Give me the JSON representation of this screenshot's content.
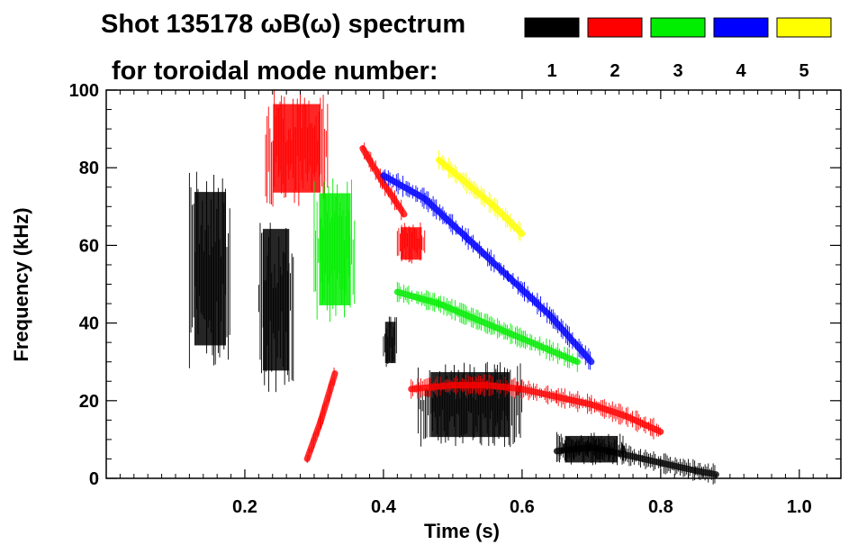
{
  "chart_data": {
    "type": "spectrogram",
    "title_line1": "Shot 135178 ωB(ω) spectrum",
    "title_line2": "for toroidal mode number:",
    "xlabel": "Time (s)",
    "ylabel": "Frequency (kHz)",
    "xlim": [
      0.0,
      1.06
    ],
    "ylim": [
      0,
      100
    ],
    "xticks": [
      {
        "value": 0.2,
        "label": "0.2"
      },
      {
        "value": 0.4,
        "label": "0.4"
      },
      {
        "value": 0.6,
        "label": "0.6"
      },
      {
        "value": 0.8,
        "label": "0.8"
      },
      {
        "value": 1.0,
        "label": "1.0"
      }
    ],
    "yticks": [
      {
        "value": 0,
        "label": "0"
      },
      {
        "value": 20,
        "label": "20"
      },
      {
        "value": 40,
        "label": "40"
      },
      {
        "value": 60,
        "label": "60"
      },
      {
        "value": 80,
        "label": "80"
      },
      {
        "value": 100,
        "label": "100"
      }
    ],
    "legend": [
      {
        "mode": "1",
        "color": "#000000"
      },
      {
        "mode": "2",
        "color": "#ff0000"
      },
      {
        "mode": "3",
        "color": "#00ee00"
      },
      {
        "mode": "4",
        "color": "#0000ff"
      },
      {
        "mode": "5",
        "color": "#ffff00"
      }
    ],
    "mode_features": [
      {
        "mode": "1",
        "kind": "band",
        "t_start": 0.12,
        "t_end": 0.18,
        "f_low": 28,
        "f_high": 80
      },
      {
        "mode": "1",
        "kind": "band",
        "t_start": 0.22,
        "t_end": 0.27,
        "f_low": 22,
        "f_high": 70
      },
      {
        "mode": "1",
        "kind": "band",
        "t_start": 0.4,
        "t_end": 0.42,
        "f_low": 28,
        "f_high": 42
      },
      {
        "mode": "1",
        "kind": "band",
        "t_start": 0.45,
        "t_end": 0.6,
        "f_low": 8,
        "f_high": 30
      },
      {
        "mode": "1",
        "kind": "band",
        "t_start": 0.65,
        "t_end": 0.75,
        "f_low": 3,
        "f_high": 12
      },
      {
        "mode": "1",
        "kind": "trace",
        "points": [
          [
            0.65,
            7
          ],
          [
            0.7,
            8
          ],
          [
            0.75,
            6
          ],
          [
            0.8,
            4
          ],
          [
            0.85,
            2
          ],
          [
            0.88,
            1
          ]
        ]
      },
      {
        "mode": "2",
        "kind": "band",
        "t_start": 0.23,
        "t_end": 0.32,
        "f_low": 70,
        "f_high": 100
      },
      {
        "mode": "2",
        "kind": "trace",
        "points": [
          [
            0.29,
            5
          ],
          [
            0.31,
            15
          ],
          [
            0.33,
            27
          ]
        ]
      },
      {
        "mode": "2",
        "kind": "band",
        "t_start": 0.42,
        "t_end": 0.46,
        "f_low": 55,
        "f_high": 66
      },
      {
        "mode": "2",
        "kind": "trace",
        "points": [
          [
            0.44,
            23
          ],
          [
            0.5,
            24
          ],
          [
            0.55,
            24
          ],
          [
            0.6,
            23
          ],
          [
            0.65,
            21
          ],
          [
            0.7,
            19
          ],
          [
            0.75,
            16
          ],
          [
            0.8,
            12
          ]
        ]
      },
      {
        "mode": "2",
        "kind": "trace",
        "points": [
          [
            0.37,
            85
          ],
          [
            0.4,
            76
          ],
          [
            0.43,
            68
          ]
        ]
      },
      {
        "mode": "3",
        "kind": "band",
        "t_start": 0.3,
        "t_end": 0.36,
        "f_low": 40,
        "f_high": 78
      },
      {
        "mode": "3",
        "kind": "trace",
        "points": [
          [
            0.42,
            48
          ],
          [
            0.48,
            45
          ],
          [
            0.52,
            42
          ],
          [
            0.56,
            39
          ],
          [
            0.6,
            36
          ],
          [
            0.64,
            33
          ],
          [
            0.68,
            30
          ]
        ]
      },
      {
        "mode": "4",
        "kind": "trace",
        "points": [
          [
            0.4,
            78
          ],
          [
            0.46,
            72
          ],
          [
            0.52,
            62
          ],
          [
            0.58,
            52
          ],
          [
            0.64,
            42
          ],
          [
            0.7,
            30
          ]
        ]
      },
      {
        "mode": "5",
        "kind": "trace",
        "points": [
          [
            0.48,
            82
          ],
          [
            0.56,
            70
          ],
          [
            0.6,
            63
          ]
        ]
      }
    ]
  }
}
